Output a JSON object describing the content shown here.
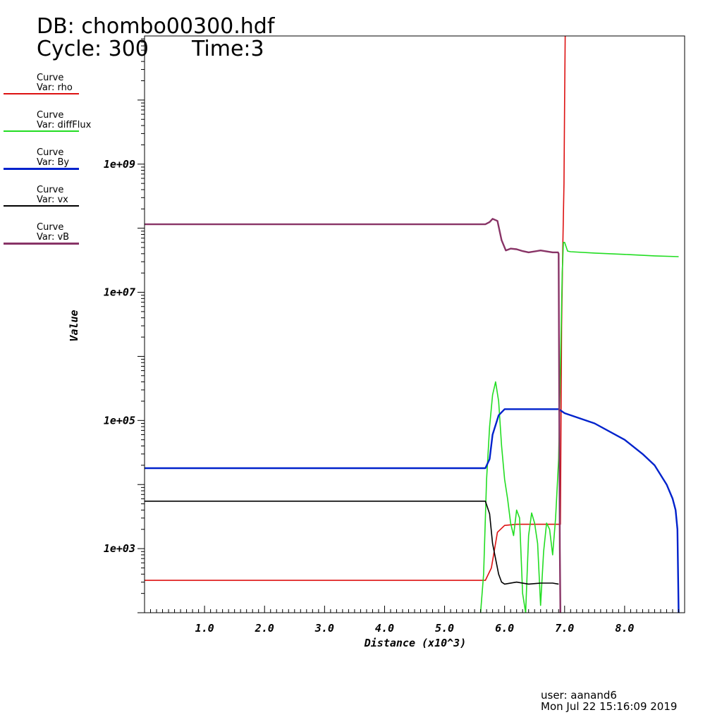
{
  "header": {
    "db_label": "DB: chombo00300.hdf",
    "cycle_label": "Cycle: 300",
    "time_label": "Time:3"
  },
  "legend": [
    {
      "title": "Curve",
      "var": "Var: rho",
      "color": "#dd1111"
    },
    {
      "title": "Curve",
      "var": "Var: diffFlux",
      "color": "#22dd22"
    },
    {
      "title": "Curve",
      "var": "Var: By",
      "color": "#0022cc"
    },
    {
      "title": "Curve",
      "var": "Var: vx",
      "color": "#000000"
    },
    {
      "title": "Curve",
      "var": "Var: vB",
      "color": "#883366"
    }
  ],
  "footer": {
    "user": "user: aanand6",
    "date": "Mon Jul 22 15:16:09 2019"
  },
  "chart_data": {
    "type": "line",
    "xlabel": "Distance (x10^3)",
    "ylabel": "Value",
    "xlim": [
      0,
      9
    ],
    "ylim": [
      100,
      100000000000
    ],
    "yscale": "log",
    "xticks": [
      1,
      2,
      3,
      4,
      5,
      6,
      7,
      8
    ],
    "xtick_labels": [
      "1.0",
      "2.0",
      "3.0",
      "4.0",
      "5.0",
      "6.0",
      "7.0",
      "8.0"
    ],
    "yticks": [
      1000,
      100000,
      10000000,
      1000000000
    ],
    "ytick_labels": [
      "1e+03",
      "1e+05",
      "1e+07",
      "1e+09"
    ],
    "grid": false,
    "series": [
      {
        "name": "rho",
        "color": "#dd1111",
        "x": [
          0,
          5.68,
          5.78,
          5.88,
          6.0,
          6.2,
          6.9,
          6.93,
          6.95,
          6.97,
          6.99,
          7.0,
          7.01
        ],
        "y": [
          320,
          320,
          500,
          1800,
          2300,
          2400,
          2400,
          2400,
          3000000,
          50000000,
          500000000,
          10000000000,
          100000000000
        ]
      },
      {
        "name": "diffFlux",
        "color": "#22dd22",
        "x": [
          5.6,
          5.65,
          5.7,
          5.75,
          5.8,
          5.85,
          5.9,
          5.95,
          6.0,
          6.05,
          6.1,
          6.15,
          6.2,
          6.25,
          6.3,
          6.35,
          6.4,
          6.45,
          6.5,
          6.55,
          6.6,
          6.65,
          6.7,
          6.75,
          6.8,
          6.85,
          6.9,
          6.93,
          6.96,
          6.98,
          7.0,
          7.05,
          7.1,
          7.5,
          8.0,
          8.5,
          8.9
        ],
        "y": [
          100,
          400,
          12000,
          80000,
          250000,
          400000,
          200000,
          40000,
          12000,
          6000,
          2500,
          1600,
          4000,
          3000,
          200,
          100,
          1600,
          3600,
          2500,
          1200,
          130,
          900,
          2500,
          2000,
          800,
          3000,
          25000,
          600000,
          20000000,
          60000000,
          60000000,
          44000000,
          43000000,
          41000000,
          39000000,
          37000000,
          36000000
        ]
      },
      {
        "name": "By",
        "color": "#0022cc",
        "x": [
          0,
          5.68,
          5.75,
          5.8,
          5.9,
          6.0,
          6.4,
          6.9,
          7.0,
          7.5,
          8.0,
          8.3,
          8.5,
          8.7,
          8.8,
          8.85,
          8.88,
          8.9,
          8.91
        ],
        "y": [
          18000,
          18000,
          25000,
          60000,
          120000,
          150000,
          150000,
          150000,
          130000,
          90000,
          50000,
          30000,
          20000,
          10000,
          6000,
          4000,
          2000,
          100,
          100
        ]
      },
      {
        "name": "vx",
        "color": "#000000",
        "x": [
          0,
          5.68,
          5.75,
          5.8,
          5.9,
          5.95,
          6.0,
          6.2,
          6.4,
          6.6,
          6.8,
          6.9
        ],
        "y": [
          5500,
          5500,
          3500,
          1200,
          400,
          300,
          280,
          300,
          280,
          290,
          290,
          280
        ]
      },
      {
        "name": "vB",
        "color": "#883366",
        "x": [
          0,
          5.68,
          5.75,
          5.8,
          5.88,
          5.95,
          6.02,
          6.1,
          6.2,
          6.3,
          6.4,
          6.6,
          6.8,
          6.89,
          6.9,
          6.92,
          6.93
        ],
        "y": [
          115000000,
          115000000,
          125000000,
          140000000,
          130000000,
          65000000,
          45000000,
          48000000,
          47000000,
          44000000,
          42000000,
          45000000,
          42000000,
          42000000,
          40000000,
          1000,
          100
        ]
      }
    ]
  }
}
